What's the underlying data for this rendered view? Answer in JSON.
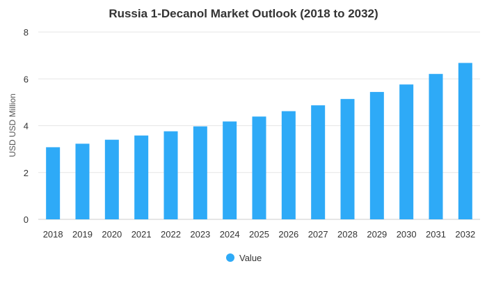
{
  "chart_data": {
    "type": "bar",
    "title": "Russia 1-Decanol Market Outlook (2018 to 2032)",
    "xlabel": "",
    "ylabel": "USD USD Million",
    "categories": [
      "2018",
      "2019",
      "2020",
      "2021",
      "2022",
      "2023",
      "2024",
      "2025",
      "2026",
      "2027",
      "2028",
      "2029",
      "2030",
      "2031",
      "2032"
    ],
    "series": [
      {
        "name": "Value",
        "values": [
          3.08,
          3.23,
          3.4,
          3.58,
          3.76,
          3.97,
          4.18,
          4.39,
          4.62,
          4.87,
          5.14,
          5.44,
          5.76,
          6.21,
          6.68
        ]
      }
    ],
    "ylim": [
      0,
      8
    ],
    "yticks": [
      0,
      2,
      4,
      6,
      8
    ],
    "grid": true,
    "legend_position": "bottom-center",
    "color": "#2eaaf7"
  }
}
